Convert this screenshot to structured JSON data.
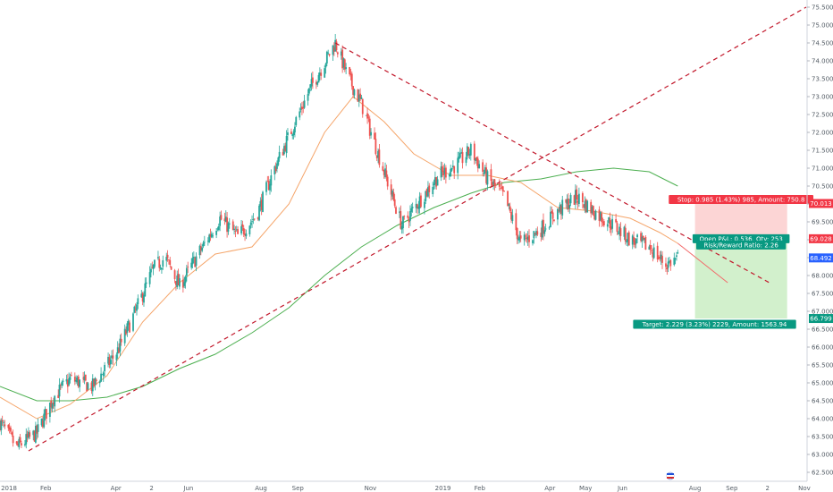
{
  "chart_data": {
    "type": "candlestick",
    "ylim": [
      62.25,
      75.7
    ],
    "y_ticks": [
      "62.500",
      "63.000",
      "63.500",
      "64.000",
      "64.500",
      "65.000",
      "65.500",
      "66.000",
      "66.500",
      "67.000",
      "67.500",
      "68.000",
      "68.500",
      "69.000",
      "69.500",
      "70.000",
      "70.500",
      "71.000",
      "71.500",
      "72.000",
      "72.500",
      "73.000",
      "73.500",
      "74.000",
      "74.500",
      "75.000",
      "75.500"
    ],
    "x_ticks": [
      "2018",
      "Feb",
      "Apr",
      "2",
      "Jun",
      "Aug",
      "Sep",
      "Nov",
      "2019",
      "Feb",
      "Apr",
      "May",
      "Jun",
      "Aug",
      "Sep",
      "2",
      "Nov"
    ],
    "price_series_keypoints": [
      [
        "2018-01-01",
        63.9
      ],
      [
        "2018-01-15",
        63.2
      ],
      [
        "2018-02-01",
        63.6
      ],
      [
        "2018-02-15",
        64.6
      ],
      [
        "2018-03-01",
        65.1
      ],
      [
        "2018-03-20",
        64.9
      ],
      [
        "2018-04-10",
        65.9
      ],
      [
        "2018-04-25",
        67.0
      ],
      [
        "2018-05-10",
        68.2
      ],
      [
        "2018-05-20",
        68.5
      ],
      [
        "2018-06-01",
        67.7
      ],
      [
        "2018-06-15",
        68.5
      ],
      [
        "2018-07-05",
        69.6
      ],
      [
        "2018-07-20",
        69.1
      ],
      [
        "2018-08-05",
        69.7
      ],
      [
        "2018-08-20",
        71.0
      ],
      [
        "2018-09-05",
        72.2
      ],
      [
        "2018-09-20",
        73.3
      ],
      [
        "2018-10-10",
        74.5
      ],
      [
        "2018-10-20",
        73.6
      ],
      [
        "2018-11-01",
        72.8
      ],
      [
        "2018-11-20",
        70.9
      ],
      [
        "2018-12-05",
        69.4
      ],
      [
        "2018-12-20",
        70.1
      ],
      [
        "2019-01-05",
        70.8
      ],
      [
        "2019-01-20",
        71.1
      ],
      [
        "2019-02-01",
        71.5
      ],
      [
        "2019-02-15",
        70.7
      ],
      [
        "2019-03-01",
        70.2
      ],
      [
        "2019-03-15",
        68.9
      ],
      [
        "2019-04-01",
        69.3
      ],
      [
        "2019-04-15",
        69.8
      ],
      [
        "2019-05-01",
        70.2
      ],
      [
        "2019-05-15",
        69.8
      ],
      [
        "2019-06-01",
        69.4
      ],
      [
        "2019-06-15",
        69.0
      ],
      [
        "2019-07-01",
        68.8
      ],
      [
        "2019-07-15",
        68.3
      ],
      [
        "2019-07-25",
        68.49
      ]
    ],
    "ema_fast": [
      [
        "2018-01-01",
        64.6
      ],
      [
        "2018-02-01",
        64.0
      ],
      [
        "2018-03-01",
        64.4
      ],
      [
        "2018-04-01",
        65.2
      ],
      [
        "2018-05-01",
        66.7
      ],
      [
        "2018-06-01",
        67.8
      ],
      [
        "2018-07-01",
        68.6
      ],
      [
        "2018-08-01",
        68.8
      ],
      [
        "2018-09-01",
        70.0
      ],
      [
        "2018-10-01",
        72.0
      ],
      [
        "2018-10-25",
        73.0
      ],
      [
        "2018-11-20",
        72.3
      ],
      [
        "2018-12-15",
        71.4
      ],
      [
        "2019-01-15",
        70.8
      ],
      [
        "2019-02-15",
        70.8
      ],
      [
        "2019-03-15",
        70.6
      ],
      [
        "2019-04-15",
        69.9
      ],
      [
        "2019-05-15",
        69.8
      ],
      [
        "2019-06-15",
        69.6
      ],
      [
        "2019-07-10",
        69.2
      ],
      [
        "2019-07-25",
        68.9
      ]
    ],
    "ema_slow": [
      [
        "2018-01-01",
        64.9
      ],
      [
        "2018-02-01",
        64.5
      ],
      [
        "2018-03-01",
        64.5
      ],
      [
        "2018-04-01",
        64.6
      ],
      [
        "2018-05-01",
        64.9
      ],
      [
        "2018-06-01",
        65.4
      ],
      [
        "2018-07-01",
        65.8
      ],
      [
        "2018-08-01",
        66.4
      ],
      [
        "2018-09-01",
        67.1
      ],
      [
        "2018-10-01",
        68.0
      ],
      [
        "2018-11-01",
        68.8
      ],
      [
        "2018-12-01",
        69.4
      ],
      [
        "2019-01-01",
        69.9
      ],
      [
        "2019-02-01",
        70.3
      ],
      [
        "2019-03-01",
        70.6
      ],
      [
        "2019-04-01",
        70.7
      ],
      [
        "2019-05-01",
        70.9
      ],
      [
        "2019-06-01",
        71.0
      ],
      [
        "2019-07-01",
        70.9
      ],
      [
        "2019-07-25",
        70.5
      ]
    ],
    "trendline_support": {
      "from": [
        "2018-01-25",
        63.1
      ],
      "to": [
        "2019-11-10",
        75.5
      ]
    },
    "trendline_resistance": {
      "from": [
        "2018-10-10",
        74.5
      ],
      "to": [
        "2019-10-10",
        67.8
      ]
    },
    "position": {
      "entry": 69.028,
      "stop": 70.013,
      "target": 66.799,
      "last": 68.492,
      "stop_label": "Stop: 0.985 (1.43%) 985, Amount: 750.8",
      "target_label": "Target: 2.229 (3.23%) 2229, Amount: 1563.94",
      "pnl_label": "Open P&L: 0.536, Qty: 253",
      "rr_label": "Risk/Reward Ratio: 2.26"
    },
    "price_badges": [
      {
        "value": "70.013",
        "color": "#f23645"
      },
      {
        "value": "69.028",
        "color": "#f23645"
      },
      {
        "value": "68.492",
        "color": "#2962ff"
      },
      {
        "value": "66.799",
        "color": "#089981"
      }
    ],
    "colors": {
      "up": "#26a69a",
      "down": "#ef5350",
      "trendline": "#c2182b",
      "ema_fast": "#f5a56a",
      "ema_slow": "#4caf50",
      "stop_zone": "#fcd5d5",
      "target_zone": "#d2f0cc"
    }
  }
}
